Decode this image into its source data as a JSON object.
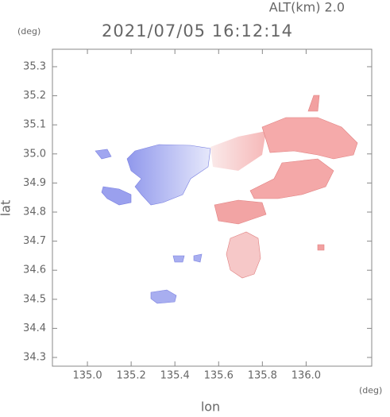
{
  "chart_data": {
    "type": "map",
    "title": "2021/07/05 16:12:14",
    "subtitle": "ALT(km) 2.0",
    "y_unit": "(deg)",
    "x_unit": "(deg)",
    "xlabel": "lon",
    "ylabel": "lat",
    "xlim": [
      134.84,
      136.3
    ],
    "ylim": [
      34.27,
      35.36
    ],
    "xticks": [
      {
        "value": 135,
        "label": "135.0"
      },
      135.2,
      135.4,
      135.6,
      135.8,
      {
        "value": 136,
        "label": "136.0"
      }
    ],
    "yticks": [
      34.3,
      34.4,
      34.5,
      34.6,
      34.7,
      34.8,
      34.9,
      {
        "value": 35,
        "label": "35.0"
      },
      35.1,
      35.2,
      35.3
    ]
  }
}
